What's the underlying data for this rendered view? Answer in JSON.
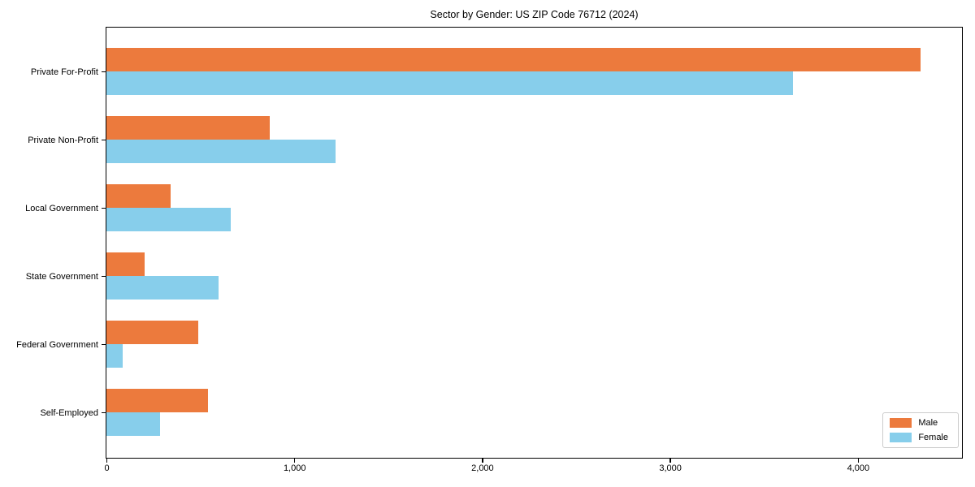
{
  "title": "Sector by Gender: US ZIP Code 76712 (2024)",
  "chart_data": {
    "type": "bar",
    "orientation": "horizontal",
    "title": "Sector by Gender: US ZIP Code 76712 (2024)",
    "xlabel": "",
    "ylabel": "",
    "categories": [
      "Private For-Profit",
      "Private Non-Profit",
      "Local Government",
      "State Government",
      "Federal Government",
      "Self-Employed"
    ],
    "series": [
      {
        "name": "Male",
        "color": "#EC7A3D",
        "values": [
          4335,
          870,
          340,
          205,
          490,
          540
        ]
      },
      {
        "name": "Female",
        "color": "#87CEEB",
        "values": [
          3655,
          1220,
          660,
          595,
          88,
          285
        ]
      }
    ],
    "xlim": [
      0,
      4550
    ],
    "x_ticks": [
      {
        "value": 0,
        "label": "0"
      },
      {
        "value": 1000,
        "label": "1,000"
      },
      {
        "value": 2000,
        "label": "2,000"
      },
      {
        "value": 3000,
        "label": "3,000"
      },
      {
        "value": 4000,
        "label": "4,000"
      }
    ],
    "grid": false,
    "legend_position": "lower right"
  }
}
